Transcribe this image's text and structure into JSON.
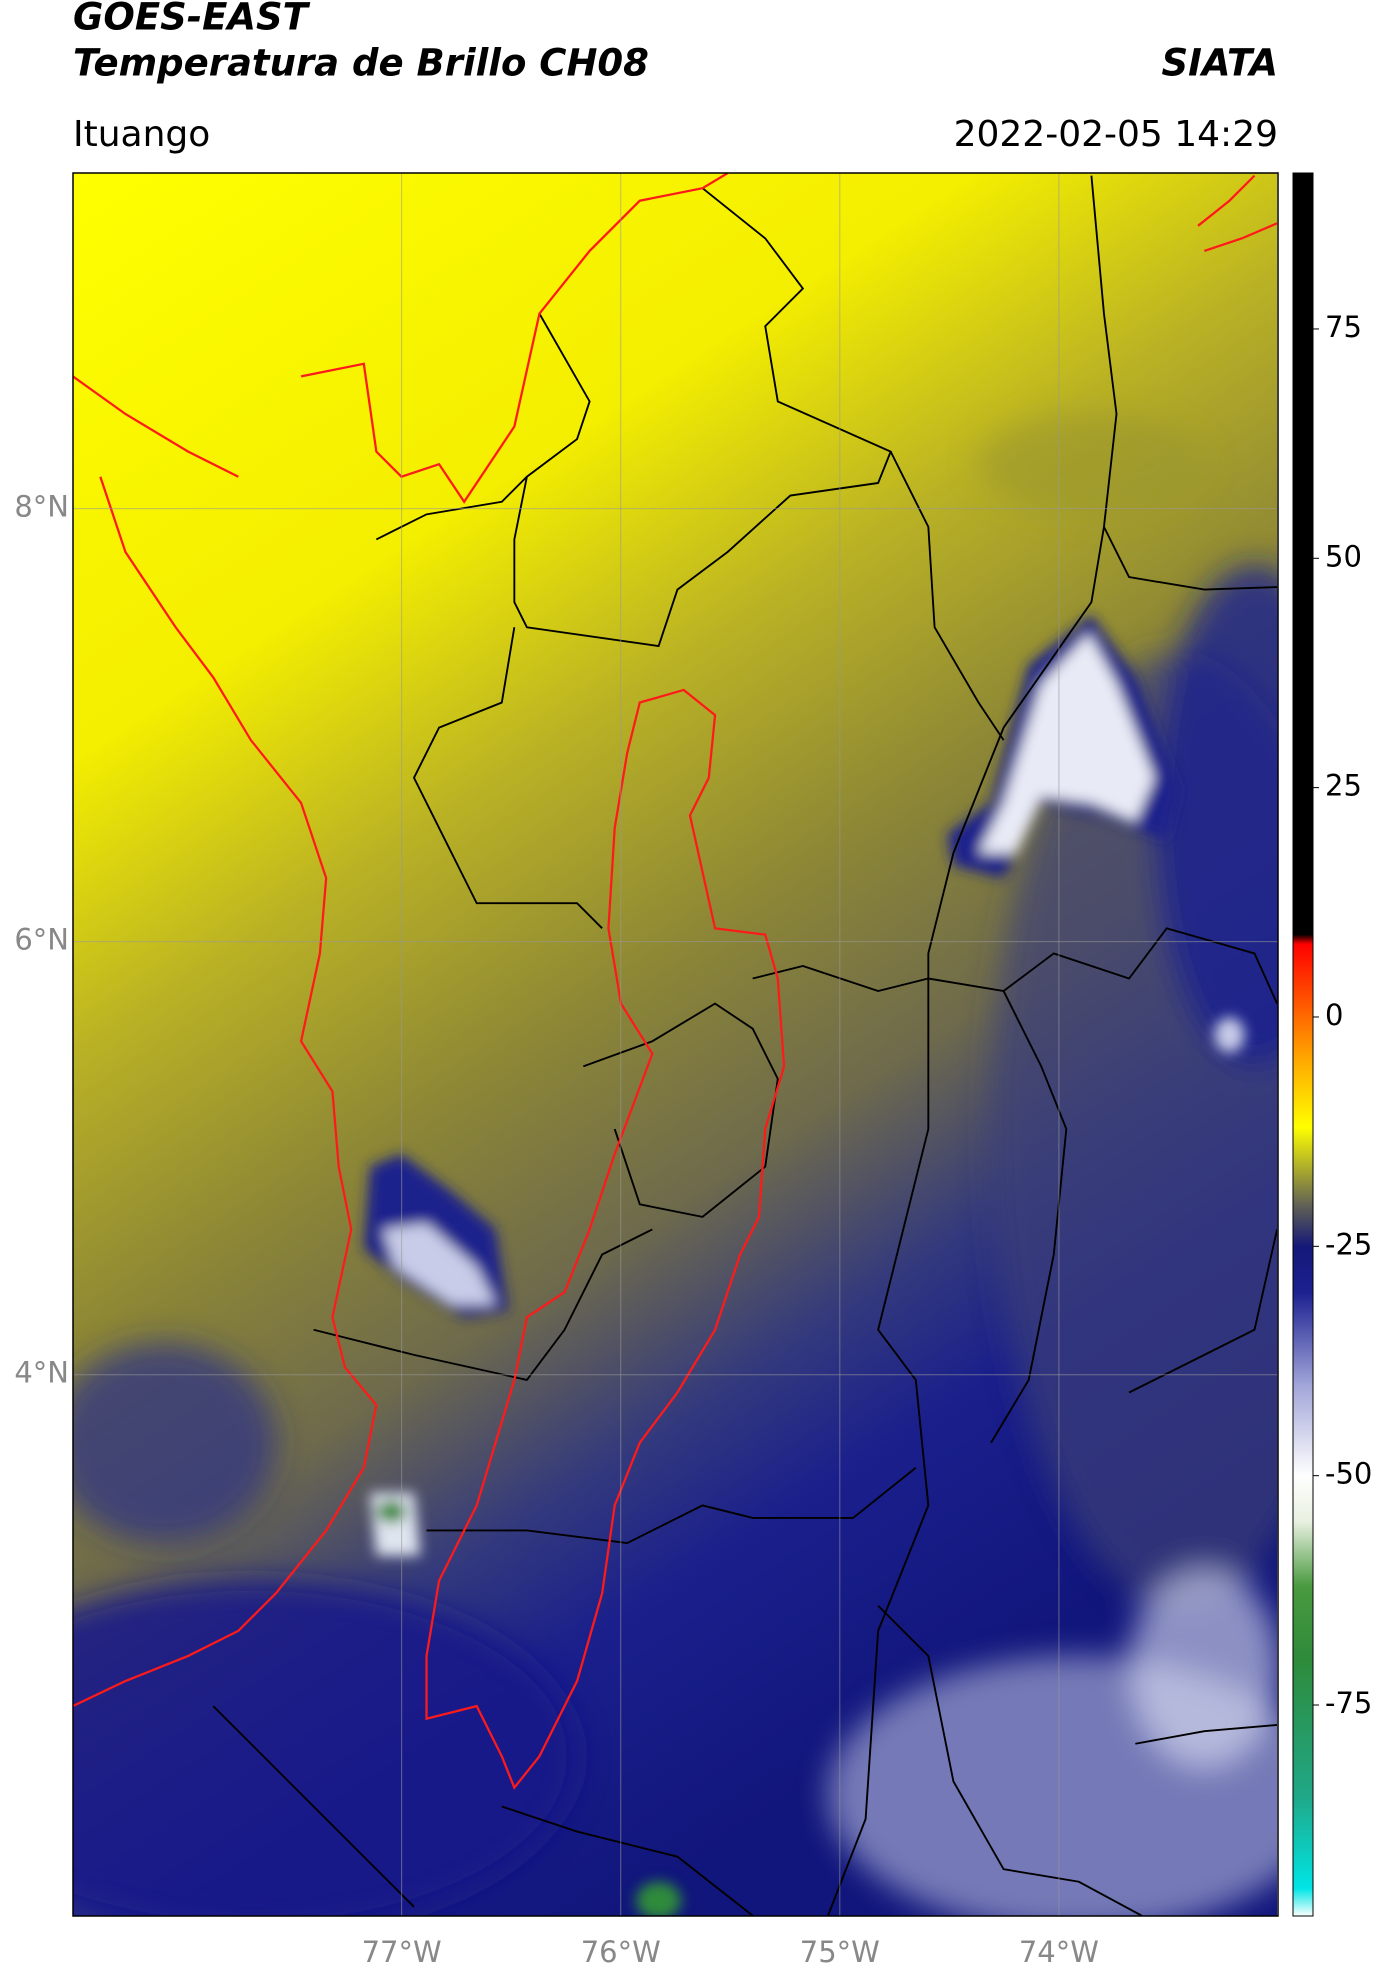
{
  "chart_data": {
    "type": "map",
    "title": "GOES-EAST",
    "subtitle": "Temperatura de Brillo CH08",
    "source": "SIATA",
    "location": "Ituango",
    "datetime": "2022-02-05 14:29",
    "xlim": [
      -78.5,
      -73
    ],
    "ylim": [
      1.5,
      9.55
    ],
    "xticks": [
      {
        "value": -77,
        "label": "77°W"
      },
      {
        "value": -76,
        "label": "76°W"
      },
      {
        "value": -75,
        "label": "75°W"
      },
      {
        "value": -74,
        "label": "74°W"
      }
    ],
    "yticks": [
      {
        "value": 4,
        "label": "4°N"
      },
      {
        "value": 6,
        "label": "6°N"
      },
      {
        "value": 8,
        "label": "8°N"
      }
    ],
    "grid": true,
    "colorbar": {
      "clim": [
        -98,
        92
      ],
      "ticks": [
        -75,
        -50,
        -25,
        0,
        25,
        50,
        75
      ],
      "colormap": [
        {
          "value": -98,
          "color": "#ffffff"
        },
        {
          "value": -95,
          "color": "#00e5e5"
        },
        {
          "value": -85,
          "color": "#20a888"
        },
        {
          "value": -70,
          "color": "#2e8b3a"
        },
        {
          "value": -62,
          "color": "#4a9a40"
        },
        {
          "value": -55,
          "color": "#e8f0e0"
        },
        {
          "value": -50,
          "color": "#ffffff"
        },
        {
          "value": -40,
          "color": "#a0a4d8"
        },
        {
          "value": -30,
          "color": "#1c2090"
        },
        {
          "value": -25,
          "color": "#141878"
        },
        {
          "value": -20,
          "color": "#6a6a50"
        },
        {
          "value": -12,
          "color": "#ffff00"
        },
        {
          "value": -4,
          "color": "#ffa000"
        },
        {
          "value": 8,
          "color": "#ff0000"
        },
        {
          "value": 9,
          "color": "#000000"
        },
        {
          "value": 92,
          "color": "#000000"
        }
      ]
    }
  }
}
